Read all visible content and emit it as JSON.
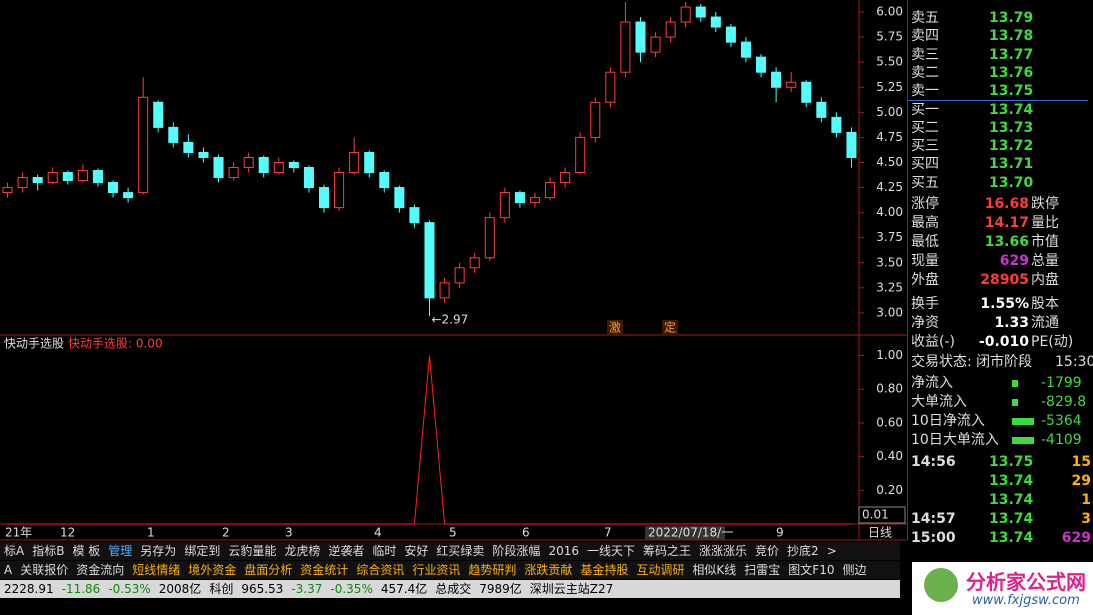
{
  "chart_data": [
    {
      "type": "candlestick",
      "candles": [
        [
          4.2,
          4.3,
          4.15,
          4.25
        ],
        [
          4.25,
          4.4,
          4.2,
          4.35
        ],
        [
          4.35,
          4.38,
          4.22,
          4.3
        ],
        [
          4.3,
          4.45,
          4.28,
          4.4
        ],
        [
          4.4,
          4.42,
          4.28,
          4.32
        ],
        [
          4.32,
          4.48,
          4.3,
          4.42
        ],
        [
          4.42,
          4.44,
          4.26,
          4.3
        ],
        [
          4.3,
          4.32,
          4.15,
          4.2
        ],
        [
          4.2,
          4.25,
          4.1,
          4.15
        ],
        [
          4.2,
          5.35,
          4.18,
          5.15
        ],
        [
          5.1,
          5.12,
          4.8,
          4.85
        ],
        [
          4.85,
          4.9,
          4.65,
          4.7
        ],
        [
          4.7,
          4.78,
          4.55,
          4.6
        ],
        [
          4.6,
          4.65,
          4.5,
          4.55
        ],
        [
          4.55,
          4.58,
          4.3,
          4.35
        ],
        [
          4.35,
          4.5,
          4.32,
          4.45
        ],
        [
          4.45,
          4.6,
          4.4,
          4.55
        ],
        [
          4.55,
          4.57,
          4.35,
          4.4
        ],
        [
          4.4,
          4.55,
          4.38,
          4.5
        ],
        [
          4.5,
          4.52,
          4.4,
          4.45
        ],
        [
          4.45,
          4.47,
          4.2,
          4.25
        ],
        [
          4.25,
          4.28,
          4.0,
          4.05
        ],
        [
          4.05,
          4.45,
          4.02,
          4.4
        ],
        [
          4.4,
          4.75,
          4.38,
          4.6
        ],
        [
          4.6,
          4.62,
          4.35,
          4.4
        ],
        [
          4.4,
          4.42,
          4.2,
          4.25
        ],
        [
          4.25,
          4.27,
          4.0,
          4.05
        ],
        [
          4.05,
          4.08,
          3.85,
          3.9
        ],
        [
          3.9,
          3.92,
          2.97,
          3.15
        ],
        [
          3.15,
          3.35,
          3.1,
          3.3
        ],
        [
          3.3,
          3.5,
          3.25,
          3.45
        ],
        [
          3.45,
          3.6,
          3.4,
          3.55
        ],
        [
          3.55,
          4.0,
          3.52,
          3.95
        ],
        [
          3.95,
          4.25,
          3.9,
          4.2
        ],
        [
          4.2,
          4.22,
          4.05,
          4.1
        ],
        [
          4.1,
          4.2,
          4.05,
          4.15
        ],
        [
          4.15,
          4.35,
          4.12,
          4.3
        ],
        [
          4.3,
          4.45,
          4.25,
          4.4
        ],
        [
          4.4,
          4.8,
          4.38,
          4.75
        ],
        [
          4.75,
          5.15,
          4.7,
          5.1
        ],
        [
          5.1,
          5.45,
          5.05,
          5.4
        ],
        [
          5.4,
          6.1,
          5.35,
          5.9
        ],
        [
          5.9,
          5.95,
          5.5,
          5.6
        ],
        [
          5.6,
          5.8,
          5.55,
          5.75
        ],
        [
          5.75,
          5.95,
          5.7,
          5.9
        ],
        [
          5.9,
          6.1,
          5.85,
          6.05
        ],
        [
          6.05,
          6.08,
          5.9,
          5.95
        ],
        [
          5.95,
          6.0,
          5.8,
          5.85
        ],
        [
          5.85,
          5.88,
          5.65,
          5.7
        ],
        [
          5.7,
          5.75,
          5.5,
          5.55
        ],
        [
          5.55,
          5.58,
          5.35,
          5.4
        ],
        [
          5.4,
          5.45,
          5.1,
          5.25
        ],
        [
          5.25,
          5.4,
          5.2,
          5.3
        ],
        [
          5.3,
          5.32,
          5.05,
          5.1
        ],
        [
          5.1,
          5.15,
          4.9,
          4.95
        ],
        [
          4.95,
          5.0,
          4.75,
          4.8
        ],
        [
          4.8,
          4.85,
          4.45,
          4.55
        ]
      ],
      "up_color": "#ff3c3c",
      "down_color": "#54fcfc",
      "ylim": [
        2.81,
        6.12
      ],
      "yticks": [
        {
          "value": 3,
          "label": "3.00"
        },
        {
          "value": 3.25,
          "label": "3.25"
        },
        {
          "value": 3.5,
          "label": "3.50"
        },
        {
          "value": 3.75,
          "label": "3.75"
        },
        {
          "value": 4,
          "label": "4.00"
        },
        {
          "value": 4.25,
          "label": "4.25"
        },
        {
          "value": 4.5,
          "label": "4.50"
        },
        {
          "value": 4.75,
          "label": "4.75"
        },
        {
          "value": 5,
          "label": "5.00"
        },
        {
          "value": 5.25,
          "label": "5.25"
        },
        {
          "value": 5.5,
          "label": "5.50"
        },
        {
          "value": 5.75,
          "label": "5.75"
        },
        {
          "value": 6,
          "label": "6.00"
        }
      ],
      "low_annotation": {
        "value": 2.97,
        "label": "←2.97"
      },
      "markers": [
        "激",
        "定"
      ]
    },
    {
      "type": "line",
      "title": "快动手选股",
      "legend": "快动手选股: 0.00",
      "current": "0.01",
      "color": "#ff2020",
      "values": [
        0,
        0,
        0,
        0,
        0,
        0,
        0,
        0,
        0,
        0,
        0,
        0,
        0,
        0,
        0,
        0,
        0,
        0,
        0,
        0,
        0,
        0,
        0,
        0,
        0,
        0,
        0,
        0,
        1,
        0,
        0,
        0,
        0,
        0,
        0,
        0,
        0,
        0,
        0,
        0,
        0,
        0,
        0,
        0,
        0,
        0,
        0,
        0,
        0,
        0,
        0,
        0,
        0,
        0,
        0,
        0,
        0
      ],
      "ylim": [
        0,
        1.11
      ],
      "yticks": [
        {
          "value": 0.2,
          "label": "0.20"
        },
        {
          "value": 0.4,
          "label": "0.40"
        },
        {
          "value": 0.6,
          "label": "0.60"
        },
        {
          "value": 0.8,
          "label": "0.80"
        },
        {
          "value": 1,
          "label": "1.00"
        }
      ]
    }
  ],
  "date_labels": [
    "21年",
    "12",
    "1",
    "2",
    "3",
    "4",
    "5",
    "6",
    "7",
    "2022/07/18/一",
    "9"
  ],
  "period": "日线",
  "order_book": [
    [
      "卖五",
      "13.79"
    ],
    [
      "卖四",
      "13.78"
    ],
    [
      "卖三",
      "13.77"
    ],
    [
      "卖二",
      "13.76"
    ],
    [
      "卖一",
      "13.75"
    ],
    [
      "买一",
      "13.74"
    ],
    [
      "买二",
      "13.73"
    ],
    [
      "买三",
      "13.72"
    ],
    [
      "买四",
      "13.71"
    ],
    [
      "买五",
      "13.70"
    ]
  ],
  "stats": [
    [
      "涨停",
      "16.68",
      "跌停"
    ],
    [
      "最高",
      "14.17",
      "量比"
    ],
    [
      "最低",
      "13.66",
      "市值"
    ],
    [
      "现量",
      "629",
      "总量"
    ],
    [
      "外盘",
      "28905",
      "内盘"
    ],
    [
      "换手",
      "1.55%",
      "股本"
    ],
    [
      "净资",
      "1.33",
      "流通"
    ],
    [
      "收益(-)",
      "-0.010",
      "PE(动)"
    ]
  ],
  "status": [
    "交易状态: 闭市阶段",
    "15:30"
  ],
  "flows": [
    [
      "净流入",
      "-1799"
    ],
    [
      "大单流入",
      "-829.8"
    ],
    [
      "10日净流入",
      "-5364"
    ],
    [
      "10日大单流入",
      "-4109"
    ]
  ],
  "ticks": [
    [
      "14:56",
      "13.75",
      "15"
    ],
    [
      "",
      "13.74",
      "29"
    ],
    [
      "",
      "13.74",
      "1"
    ],
    [
      "14:57",
      "13.74",
      "3"
    ],
    [
      "15:00",
      "13.74",
      "629"
    ]
  ],
  "tabs1": [
    "标A",
    "指标B",
    "模 板",
    "管理",
    "另存为",
    "绑定到",
    "云豹量能",
    "龙虎榜",
    "逆袭者",
    "临时",
    "安好",
    "红买绿卖",
    "阶段涨幅",
    "2016",
    "一线天下",
    "筹码之王",
    "涨涨涨乐",
    "竞价",
    "抄底2",
    ">"
  ],
  "tabs2": [
    "A",
    "关联报价",
    "资金流向",
    "短线情绪",
    "境外资金",
    "盘面分析",
    "资金统计",
    "综合资讯",
    "行业资讯",
    "趋势研判",
    "涨跌贡献",
    "基金持股",
    "互动调研",
    "相似K线",
    "扫雷宝",
    "图文F10",
    "侧边"
  ],
  "status_bar": [
    "2228.91",
    "-11.86",
    "-0.53%",
    "2008亿",
    "科创",
    "965.53",
    "-3.37",
    "-0.35%",
    "457.4亿",
    "总成交",
    "7989亿",
    "深圳云主站Z27"
  ],
  "logo": {
    "title": "分析家公式网",
    "url": "www.fxjgsw.com"
  }
}
